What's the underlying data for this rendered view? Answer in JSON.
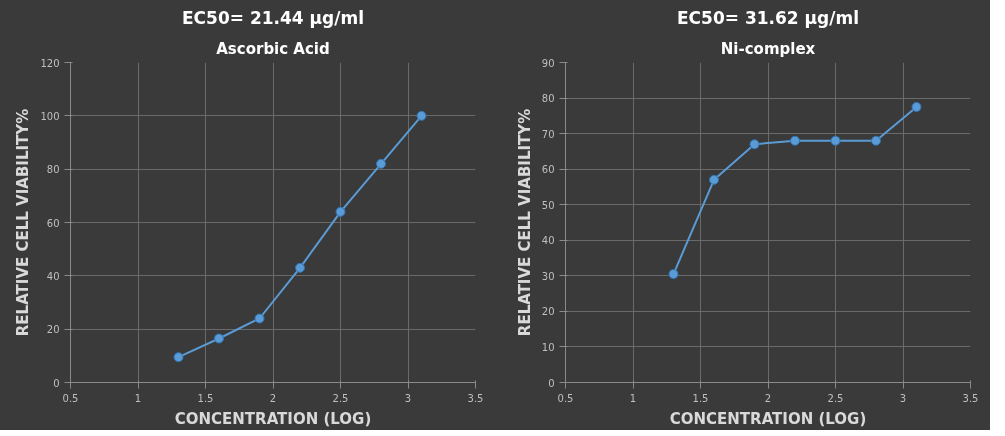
{
  "chart_data": [
    {
      "type": "line",
      "title": "EC50= 21.44 µg/ml",
      "subtitle": "Ascorbic Acid",
      "xlabel": "CONCENTRATION (LOG)",
      "ylabel": "RELATIVE CELL VIABILITY%",
      "x": [
        1.3,
        1.6,
        1.9,
        2.2,
        2.5,
        2.8,
        3.1
      ],
      "series": [
        {
          "color": "#5b9bd5",
          "values": [
            9.5,
            16.5,
            24,
            43,
            64,
            82,
            100
          ]
        }
      ],
      "xlim": [
        0.5,
        3.5
      ],
      "xticks": [
        0.5,
        1,
        1.5,
        2,
        2.5,
        3,
        3.5
      ],
      "ylim": [
        0,
        120
      ],
      "yticks": [
        0,
        20,
        40,
        60,
        80,
        100,
        120
      ],
      "grid": true,
      "marker": "circle",
      "line_style": "solid"
    },
    {
      "type": "line",
      "title": "EC50= 31.62 µg/ml",
      "subtitle": "Ni-complex",
      "xlabel": "CONCENTRATION (LOG)",
      "ylabel": "RELATIVE CELL VIABILITY%",
      "x": [
        1.3,
        1.6,
        1.9,
        2.2,
        2.5,
        2.8,
        3.1
      ],
      "series": [
        {
          "color": "#5b9bd5",
          "values": [
            30.5,
            57,
            67,
            68,
            68,
            68,
            77.5
          ]
        }
      ],
      "xlim": [
        0.5,
        3.5
      ],
      "xticks": [
        0.5,
        1,
        1.5,
        2,
        2.5,
        3,
        3.5
      ],
      "ylim": [
        0,
        90
      ],
      "yticks": [
        0,
        10,
        20,
        30,
        40,
        50,
        60,
        70,
        80,
        90
      ],
      "grid": true,
      "marker": "circle",
      "line_style": "solid"
    }
  ]
}
